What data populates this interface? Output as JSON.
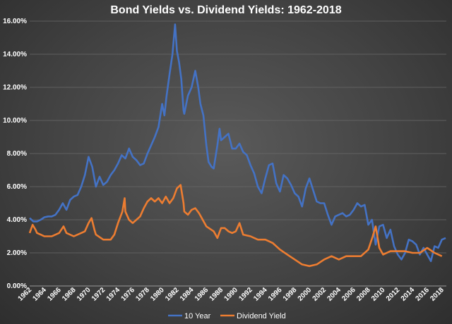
{
  "chart_data": {
    "type": "line",
    "title": "Bond Yields vs. Dividend Yields: 1962-2018",
    "xlabel": "",
    "ylabel": "",
    "xlim": [
      1962,
      2018.6
    ],
    "ylim": [
      0,
      16
    ],
    "x_ticks": [
      "1962",
      "1964",
      "1966",
      "1968",
      "1970",
      "1972",
      "1974",
      "1976",
      "1978",
      "1980",
      "1982",
      "1984",
      "1986",
      "1988",
      "1990",
      "1992",
      "1994",
      "1996",
      "1998",
      "2000",
      "2002",
      "2004",
      "2006",
      "2008",
      "2010",
      "2012",
      "2014",
      "2016",
      "2018"
    ],
    "y_ticks": [
      "0.00%",
      "2.00%",
      "4.00%",
      "6.00%",
      "8.00%",
      "10.00%",
      "12.00%",
      "14.00%",
      "16.00%"
    ],
    "grid": "horizontal",
    "legend": "bottom-center",
    "series": [
      {
        "name": "10 Year",
        "color": "#4472c4",
        "points": [
          [
            1962,
            4.1
          ],
          [
            1962.5,
            3.9
          ],
          [
            1963,
            3.9
          ],
          [
            1963.5,
            4.0
          ],
          [
            1964,
            4.15
          ],
          [
            1964.5,
            4.2
          ],
          [
            1965,
            4.2
          ],
          [
            1965.5,
            4.3
          ],
          [
            1966,
            4.6
          ],
          [
            1966.5,
            5.0
          ],
          [
            1967,
            4.6
          ],
          [
            1967.5,
            5.2
          ],
          [
            1968,
            5.4
          ],
          [
            1968.5,
            5.5
          ],
          [
            1969,
            6.0
          ],
          [
            1969.5,
            6.7
          ],
          [
            1970,
            7.8
          ],
          [
            1970.5,
            7.2
          ],
          [
            1971,
            6.0
          ],
          [
            1971.5,
            6.6
          ],
          [
            1972,
            6.1
          ],
          [
            1972.5,
            6.3
          ],
          [
            1973,
            6.7
          ],
          [
            1973.5,
            7.0
          ],
          [
            1974,
            7.4
          ],
          [
            1974.5,
            7.9
          ],
          [
            1975,
            7.7
          ],
          [
            1975.5,
            8.3
          ],
          [
            1976,
            7.8
          ],
          [
            1976.5,
            7.6
          ],
          [
            1977,
            7.3
          ],
          [
            1977.5,
            7.4
          ],
          [
            1978,
            8.0
          ],
          [
            1978.5,
            8.5
          ],
          [
            1979,
            9.0
          ],
          [
            1979.5,
            9.6
          ],
          [
            1980,
            11.0
          ],
          [
            1980.3,
            10.3
          ],
          [
            1980.6,
            11.5
          ],
          [
            1981,
            12.8
          ],
          [
            1981.4,
            14.0
          ],
          [
            1981.75,
            15.8
          ],
          [
            1982,
            14.2
          ],
          [
            1982.3,
            13.5
          ],
          [
            1982.6,
            12.5
          ],
          [
            1982.9,
            10.6
          ],
          [
            1983,
            10.4
          ],
          [
            1983.5,
            11.5
          ],
          [
            1984,
            12.0
          ],
          [
            1984.5,
            13.0
          ],
          [
            1984.9,
            12.0
          ],
          [
            1985.2,
            11.0
          ],
          [
            1985.6,
            10.3
          ],
          [
            1986,
            8.5
          ],
          [
            1986.3,
            7.5
          ],
          [
            1986.7,
            7.2
          ],
          [
            1987,
            7.1
          ],
          [
            1987.5,
            8.5
          ],
          [
            1987.8,
            9.5
          ],
          [
            1988,
            8.8
          ],
          [
            1988.5,
            9.0
          ],
          [
            1989,
            9.2
          ],
          [
            1989.5,
            8.3
          ],
          [
            1990,
            8.3
          ],
          [
            1990.5,
            8.6
          ],
          [
            1991,
            8.1
          ],
          [
            1991.5,
            7.9
          ],
          [
            1992,
            7.3
          ],
          [
            1992.5,
            6.8
          ],
          [
            1993,
            6.0
          ],
          [
            1993.5,
            5.6
          ],
          [
            1994,
            6.5
          ],
          [
            1994.5,
            7.3
          ],
          [
            1995,
            7.4
          ],
          [
            1995.5,
            6.2
          ],
          [
            1996,
            5.7
          ],
          [
            1996.5,
            6.7
          ],
          [
            1997,
            6.5
          ],
          [
            1997.5,
            6.1
          ],
          [
            1998,
            5.6
          ],
          [
            1998.5,
            5.4
          ],
          [
            1999,
            4.8
          ],
          [
            1999.5,
            5.9
          ],
          [
            2000,
            6.5
          ],
          [
            2000.5,
            5.8
          ],
          [
            2001,
            5.1
          ],
          [
            2001.5,
            5.0
          ],
          [
            2002,
            5.0
          ],
          [
            2002.5,
            4.3
          ],
          [
            2003,
            3.7
          ],
          [
            2003.5,
            4.2
          ],
          [
            2004,
            4.3
          ],
          [
            2004.5,
            4.4
          ],
          [
            2005,
            4.2
          ],
          [
            2005.5,
            4.3
          ],
          [
            2006,
            4.6
          ],
          [
            2006.5,
            5.0
          ],
          [
            2007,
            4.8
          ],
          [
            2007.5,
            4.9
          ],
          [
            2008,
            3.7
          ],
          [
            2008.5,
            4.0
          ],
          [
            2009,
            2.5
          ],
          [
            2009.5,
            3.6
          ],
          [
            2010,
            3.7
          ],
          [
            2010.5,
            2.9
          ],
          [
            2011,
            3.4
          ],
          [
            2011.5,
            2.4
          ],
          [
            2012,
            1.9
          ],
          [
            2012.5,
            1.6
          ],
          [
            2013,
            2.0
          ],
          [
            2013.5,
            2.8
          ],
          [
            2014,
            2.7
          ],
          [
            2014.5,
            2.5
          ],
          [
            2015,
            1.9
          ],
          [
            2015.5,
            2.3
          ],
          [
            2016,
            1.9
          ],
          [
            2016.5,
            1.5
          ],
          [
            2017,
            2.4
          ],
          [
            2017.5,
            2.3
          ],
          [
            2018,
            2.8
          ],
          [
            2018.5,
            2.9
          ]
        ]
      },
      {
        "name": "Dividend Yield",
        "color": "#ed7d31",
        "points": [
          [
            1962,
            3.2
          ],
          [
            1962.4,
            3.7
          ],
          [
            1962.8,
            3.4
          ],
          [
            1963,
            3.2
          ],
          [
            1963.5,
            3.1
          ],
          [
            1964,
            3.0
          ],
          [
            1965,
            3.0
          ],
          [
            1966,
            3.2
          ],
          [
            1966.6,
            3.6
          ],
          [
            1967,
            3.2
          ],
          [
            1968,
            3.0
          ],
          [
            1969,
            3.2
          ],
          [
            1969.5,
            3.3
          ],
          [
            1970,
            3.8
          ],
          [
            1970.4,
            4.1
          ],
          [
            1970.8,
            3.4
          ],
          [
            1971,
            3.1
          ],
          [
            1972,
            2.8
          ],
          [
            1973,
            2.8
          ],
          [
            1973.5,
            3.1
          ],
          [
            1974,
            3.8
          ],
          [
            1974.6,
            4.5
          ],
          [
            1974.9,
            5.3
          ],
          [
            1975,
            4.5
          ],
          [
            1975.5,
            4.0
          ],
          [
            1976,
            3.8
          ],
          [
            1977,
            4.2
          ],
          [
            1977.5,
            4.7
          ],
          [
            1978,
            5.1
          ],
          [
            1978.5,
            5.3
          ],
          [
            1979,
            5.1
          ],
          [
            1979.5,
            5.3
          ],
          [
            1980,
            5.0
          ],
          [
            1980.5,
            5.4
          ],
          [
            1981,
            5.0
          ],
          [
            1981.5,
            5.3
          ],
          [
            1982,
            5.9
          ],
          [
            1982.5,
            6.1
          ],
          [
            1982.9,
            5.0
          ],
          [
            1983,
            4.5
          ],
          [
            1983.5,
            4.3
          ],
          [
            1984,
            4.6
          ],
          [
            1984.5,
            4.7
          ],
          [
            1985,
            4.4
          ],
          [
            1985.5,
            4.0
          ],
          [
            1986,
            3.6
          ],
          [
            1987,
            3.3
          ],
          [
            1987.5,
            2.9
          ],
          [
            1988,
            3.5
          ],
          [
            1988.5,
            3.5
          ],
          [
            1989,
            3.3
          ],
          [
            1989.5,
            3.2
          ],
          [
            1990,
            3.3
          ],
          [
            1990.5,
            3.8
          ],
          [
            1991,
            3.1
          ],
          [
            1992,
            3.0
          ],
          [
            1993,
            2.8
          ],
          [
            1994,
            2.8
          ],
          [
            1995,
            2.6
          ],
          [
            1996,
            2.2
          ],
          [
            1997,
            1.9
          ],
          [
            1998,
            1.6
          ],
          [
            1999,
            1.3
          ],
          [
            2000,
            1.2
          ],
          [
            2001,
            1.3
          ],
          [
            2002,
            1.6
          ],
          [
            2003,
            1.8
          ],
          [
            2003.5,
            1.7
          ],
          [
            2004,
            1.6
          ],
          [
            2005,
            1.8
          ],
          [
            2006,
            1.8
          ],
          [
            2007,
            1.8
          ],
          [
            2008,
            2.2
          ],
          [
            2008.6,
            3.0
          ],
          [
            2009,
            3.6
          ],
          [
            2009.5,
            2.3
          ],
          [
            2010,
            1.9
          ],
          [
            2011,
            2.1
          ],
          [
            2012,
            2.1
          ],
          [
            2013,
            2.1
          ],
          [
            2014,
            2.0
          ],
          [
            2015,
            2.0
          ],
          [
            2016,
            2.3
          ],
          [
            2017,
            2.0
          ],
          [
            2018,
            1.8
          ]
        ]
      }
    ]
  }
}
